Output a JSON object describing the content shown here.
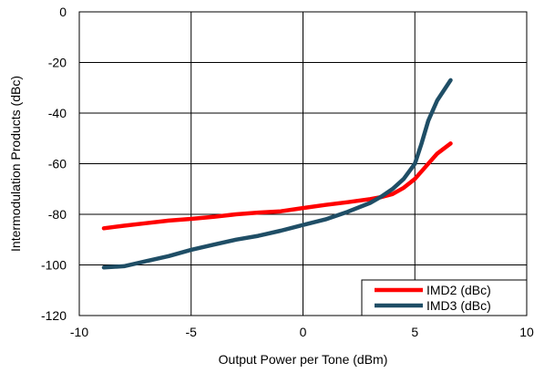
{
  "chart_data": {
    "type": "line",
    "xlabel": "Output Power per Tone (dBm)",
    "ylabel": "Intermodulation Products (dBc)",
    "xlim": [
      -10,
      10
    ],
    "ylim": [
      -120,
      0
    ],
    "xticks": [
      -10,
      -5,
      0,
      5,
      10
    ],
    "yticks": [
      0,
      -20,
      -40,
      -60,
      -80,
      -100,
      -120
    ],
    "xtick_labels": [
      "-10",
      "-5",
      "0",
      "5",
      "10"
    ],
    "ytick_labels": [
      "0",
      "-20",
      "-40",
      "-60",
      "-80",
      "-100",
      "-120"
    ],
    "grid": true,
    "legend": "bottom-right",
    "series": [
      {
        "name": "IMD2 (dBc)",
        "color": "#ff0000",
        "x": [
          -8.9,
          -8,
          -7,
          -6,
          -5,
          -4,
          -3,
          -2,
          -1,
          0,
          1,
          2,
          3,
          3.5,
          4,
          4.5,
          5,
          5.5,
          6,
          6.6
        ],
        "y": [
          -85.5,
          -84.5,
          -83.5,
          -82.5,
          -81.8,
          -81,
          -80,
          -79.3,
          -78.8,
          -77.5,
          -76.3,
          -75.2,
          -74,
          -73.2,
          -72,
          -69.5,
          -66,
          -61,
          -56,
          -52
        ]
      },
      {
        "name": "IMD3 (dBc)",
        "color": "#1f4e66",
        "x": [
          -8.9,
          -8,
          -7,
          -6,
          -5,
          -4,
          -3,
          -2,
          -1,
          0,
          1,
          2,
          3,
          3.5,
          4,
          4.5,
          5,
          5.3,
          5.6,
          6,
          6.6
        ],
        "y": [
          -101,
          -100.5,
          -98.5,
          -96.5,
          -94,
          -92,
          -90,
          -88.5,
          -86.5,
          -84.2,
          -82,
          -79,
          -75.5,
          -73,
          -70,
          -66,
          -60,
          -52,
          -43,
          -35,
          -27
        ]
      }
    ]
  }
}
